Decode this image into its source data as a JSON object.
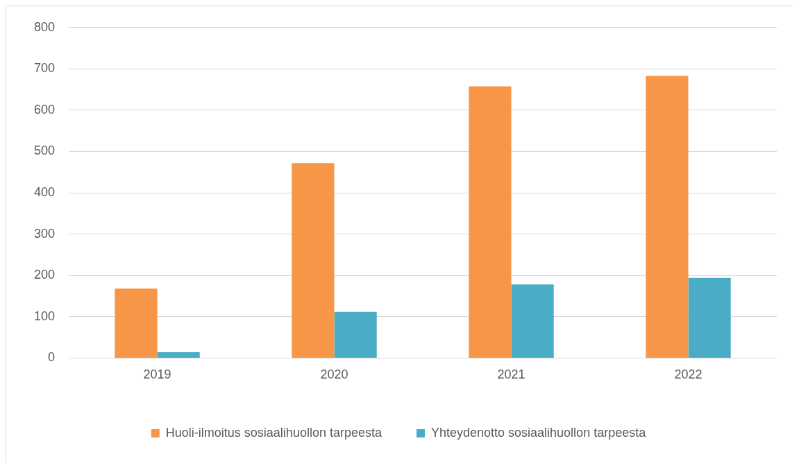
{
  "chart_data": {
    "type": "bar",
    "categories": [
      "2019",
      "2020",
      "2021",
      "2022"
    ],
    "series": [
      {
        "name": "Huoli-ilmoitus sosiaalihuollon tarpeesta",
        "color": "#f79646",
        "values": [
          168,
          472,
          658,
          683
        ]
      },
      {
        "name": "Yhteydenotto sosiaalihuollon tarpeesta",
        "color": "#4bacc6",
        "values": [
          14,
          112,
          178,
          194
        ]
      }
    ],
    "ylim": [
      0,
      800
    ],
    "yticks": [
      0,
      100,
      200,
      300,
      400,
      500,
      600,
      700,
      800
    ],
    "grid": "y",
    "legend": "bottom"
  }
}
